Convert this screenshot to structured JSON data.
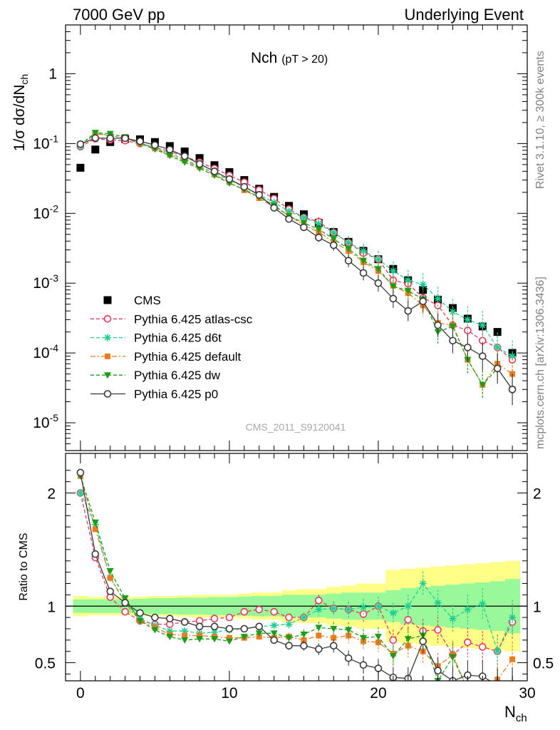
{
  "header": {
    "left": "7000 GeV pp",
    "right": "Underlying Event"
  },
  "plot_title": "Nch (pT > 20)",
  "side_text": {
    "top": "Rivet 3.1.10, ≥ 300k events",
    "bottom": "mcplots.cern.ch [arXiv:1306.3436]"
  },
  "watermark": "CMS_2011_S9120041",
  "colors": {
    "CMS": "#000000",
    "atlas-csc": "#e8395a",
    "d6t": "#1fcf92",
    "default": "#f07b1c",
    "dw": "#1a9e1a",
    "p0": "#3a3a3a",
    "band_inner": "#99f899",
    "band_outer": "#ffff88"
  },
  "chart_data": [
    {
      "type": "scatter",
      "title": "Nch (pT > 20)",
      "xlabel": "N_ch",
      "ylabel": "1/σ dσ/dN_ch",
      "xlim": [
        -1,
        30
      ],
      "ylim": [
        4e-06,
        5
      ],
      "yscale": "log",
      "x_ticks": [
        "0",
        "10",
        "20",
        "30"
      ],
      "y_ticks": [
        "10^-5",
        "10^-4",
        "10^-3",
        "10^-2",
        "10^-1",
        "1"
      ],
      "legend_position": "bottom-left",
      "x": [
        0,
        1,
        2,
        3,
        4,
        5,
        6,
        7,
        8,
        9,
        10,
        11,
        12,
        13,
        14,
        15,
        16,
        17,
        18,
        19,
        20,
        21,
        22,
        23,
        24,
        25,
        26,
        27,
        28,
        29
      ],
      "series": [
        {
          "name": "CMS",
          "marker": "square",
          "line": "none",
          "values": [
            0.045,
            0.082,
            0.105,
            0.116,
            0.115,
            0.105,
            0.092,
            0.077,
            0.062,
            0.049,
            0.039,
            0.03,
            0.0225,
            0.0172,
            0.0128,
            0.0097,
            0.0073,
            0.0054,
            0.0039,
            0.0029,
            0.0022,
            0.0016,
            0.0011,
            0.0008,
            0.00058,
            0.00044,
            0.00031,
            0.00024,
            0.0002,
            0.0001
          ]
        },
        {
          "name": "Pythia 6.425 atlas-csc",
          "marker": "circle-open",
          "line": "dashed",
          "values": [
            0.09,
            0.117,
            0.113,
            0.11,
            0.1,
            0.088,
            0.077,
            0.066,
            0.054,
            0.044,
            0.035,
            0.028,
            0.0217,
            0.0163,
            0.0115,
            0.0087,
            0.0076,
            0.0053,
            0.0038,
            0.0027,
            0.0022,
            0.0011,
            0.00098,
            0.00062,
            0.00048,
            0.00025,
            0.00021,
            0.00015,
            0.00012,
            8e-05
          ]
        },
        {
          "name": "Pythia 6.425 d6t",
          "marker": "star",
          "line": "dashed",
          "values": [
            0.09,
            0.14,
            0.13,
            0.12,
            0.102,
            0.087,
            0.072,
            0.06,
            0.047,
            0.038,
            0.03,
            0.024,
            0.0184,
            0.0143,
            0.0107,
            0.0087,
            0.0071,
            0.0053,
            0.0038,
            0.0029,
            0.0022,
            0.0015,
            0.0011,
            0.00096,
            0.0006,
            0.00039,
            0.0003,
            0.00025,
            0.00012,
            9e-05
          ]
        },
        {
          "name": "Pythia 6.425 default",
          "marker": "square-small",
          "line": "dashdot",
          "values": [
            0.097,
            0.138,
            0.13,
            0.12,
            0.1,
            0.085,
            0.069,
            0.057,
            0.046,
            0.036,
            0.028,
            0.0215,
            0.0165,
            0.0124,
            0.0093,
            0.0068,
            0.0054,
            0.0039,
            0.0029,
            0.002,
            0.0015,
            0.00092,
            0.00072,
            0.00048,
            0.00027,
            0.00025,
            8e-05,
            3.5e-05,
            7e-05,
            5e-05
          ]
        },
        {
          "name": "Pythia 6.425 dw",
          "marker": "triangle-down",
          "line": "dashed",
          "values": [
            0.097,
            0.143,
            0.138,
            0.124,
            0.1,
            0.083,
            0.067,
            0.054,
            0.044,
            0.035,
            0.027,
            0.022,
            0.0172,
            0.013,
            0.0092,
            0.0073,
            0.0059,
            0.0043,
            0.0031,
            0.0021,
            0.0016,
            0.0009,
            0.00078,
            0.00059,
            0.0002,
            0.00024,
            8e-05,
            3.5e-05,
            6e-05,
            3e-05
          ]
        },
        {
          "name": "Pythia 6.425 p0",
          "marker": "circle-open",
          "line": "solid",
          "values": [
            0.098,
            0.12,
            0.119,
            0.119,
            0.108,
            0.095,
            0.082,
            0.066,
            0.051,
            0.04,
            0.031,
            0.024,
            0.0184,
            0.012,
            0.0083,
            0.0063,
            0.0045,
            0.0035,
            0.0021,
            0.0014,
            0.001,
            0.0006,
            0.0004,
            0.00055,
            0.00025,
            0.00015,
            0.00012,
            9e-05,
            6e-05,
            3e-05
          ]
        }
      ]
    },
    {
      "type": "line",
      "ylabel": "Ratio to CMS",
      "xlabel": "N_ch",
      "xlim": [
        -1,
        30
      ],
      "ylim": [
        0.34,
        2.35
      ],
      "yscale": "linear",
      "x_ticks": [
        "0",
        "10",
        "20",
        "30"
      ],
      "y_ticks": [
        "0.5",
        "1",
        "2"
      ],
      "reference_line": 1,
      "band_inner_halfwidth": [
        0.06,
        0.06,
        0.06,
        0.06,
        0.065,
        0.07,
        0.07,
        0.075,
        0.075,
        0.08,
        0.08,
        0.085,
        0.09,
        0.09,
        0.1,
        0.1,
        0.1,
        0.11,
        0.12,
        0.12,
        0.12,
        0.14,
        0.16,
        0.17,
        0.18,
        0.19,
        0.2,
        0.21,
        0.22,
        0.24
      ],
      "band_outer_halfwidth": [
        0.09,
        0.08,
        0.08,
        0.08,
        0.085,
        0.09,
        0.09,
        0.095,
        0.1,
        0.1,
        0.1,
        0.11,
        0.12,
        0.12,
        0.14,
        0.15,
        0.15,
        0.17,
        0.18,
        0.2,
        0.2,
        0.32,
        0.33,
        0.34,
        0.35,
        0.36,
        0.37,
        0.38,
        0.39,
        0.4
      ],
      "x": [
        0,
        1,
        2,
        3,
        4,
        5,
        6,
        7,
        8,
        9,
        10,
        11,
        12,
        13,
        14,
        15,
        16,
        17,
        18,
        19,
        20,
        21,
        22,
        23,
        24,
        25,
        26,
        27,
        28,
        29
      ],
      "series": [
        {
          "name": "Pythia 6.425 atlas-csc",
          "values": [
            2.0,
            1.43,
            1.08,
            0.95,
            0.87,
            0.84,
            0.84,
            0.86,
            0.87,
            0.89,
            0.9,
            0.95,
            0.97,
            0.95,
            0.9,
            0.9,
            1.05,
            0.98,
            0.97,
            0.93,
            1.0,
            0.7,
            0.88,
            0.78,
            0.79,
            0.57,
            0.68,
            0.64,
            0.6,
            0.86
          ]
        },
        {
          "name": "Pythia 6.425 d6t",
          "values": [
            2.0,
            1.72,
            1.25,
            1.04,
            0.89,
            0.83,
            0.78,
            0.78,
            0.76,
            0.77,
            0.79,
            0.8,
            0.82,
            0.83,
            0.84,
            0.9,
            0.97,
            0.98,
            0.97,
            0.99,
            1.0,
            0.94,
            1.0,
            1.2,
            1.03,
            0.89,
            0.97,
            1.02,
            0.6,
            0.9
          ]
        },
        {
          "name": "Pythia 6.425 default",
          "values": [
            2.15,
            1.68,
            1.25,
            1.03,
            0.87,
            0.81,
            0.75,
            0.74,
            0.74,
            0.73,
            0.72,
            0.72,
            0.73,
            0.72,
            0.73,
            0.7,
            0.74,
            0.72,
            0.74,
            0.69,
            0.68,
            0.58,
            0.65,
            0.6,
            0.47,
            0.57,
            0.26,
            0.15,
            0.35,
            0.53
          ]
        },
        {
          "name": "Pythia 6.425 dw",
          "values": [
            2.15,
            1.74,
            1.31,
            1.07,
            0.87,
            0.79,
            0.73,
            0.7,
            0.71,
            0.71,
            0.69,
            0.73,
            0.76,
            0.76,
            0.72,
            0.75,
            0.81,
            0.8,
            0.79,
            0.72,
            0.73,
            0.56,
            0.71,
            0.74,
            0.34,
            0.55,
            0.26,
            0.15,
            0.3,
            0.3
          ]
        },
        {
          "name": "Pythia 6.425 p0",
          "values": [
            2.18,
            1.46,
            1.13,
            1.03,
            0.94,
            0.9,
            0.89,
            0.86,
            0.82,
            0.82,
            0.8,
            0.8,
            0.82,
            0.7,
            0.65,
            0.65,
            0.62,
            0.65,
            0.54,
            0.48,
            0.45,
            0.37,
            0.36,
            0.69,
            0.43,
            0.34,
            0.39,
            0.38,
            0.3,
            0.3
          ]
        }
      ]
    }
  ],
  "legend": [
    {
      "label": "CMS",
      "key": "CMS",
      "marker": "square",
      "line": "none"
    },
    {
      "label": "Pythia 6.425 atlas-csc",
      "key": "atlas-csc",
      "marker": "circle-open",
      "line": "dashed"
    },
    {
      "label": "Pythia 6.425 d6t",
      "key": "d6t",
      "marker": "star",
      "line": "dashed"
    },
    {
      "label": "Pythia 6.425 default",
      "key": "default",
      "marker": "square-small",
      "line": "dashdot"
    },
    {
      "label": "Pythia 6.425 dw",
      "key": "dw",
      "marker": "triangle-down",
      "line": "dashed"
    },
    {
      "label": "Pythia 6.425 p0",
      "key": "p0",
      "marker": "circle-open",
      "line": "solid"
    }
  ]
}
